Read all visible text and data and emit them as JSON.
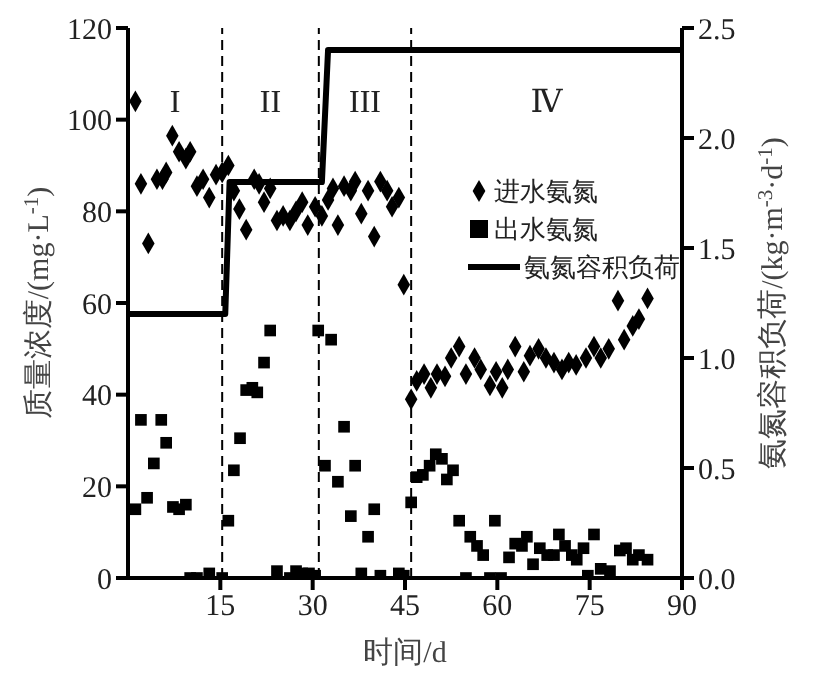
{
  "chart_data": {
    "type": "scatter",
    "xlabel": "时间/d",
    "ylabel": "质量浓度/(mg·L$^{-1}$)",
    "y2label": "氨氮容积负荷/(kg·m$^{-3}$·d$^{-1}$)",
    "xlim": [
      0,
      90
    ],
    "xticks": [
      15,
      30,
      45,
      60,
      75,
      90
    ],
    "ylim": [
      0,
      120
    ],
    "yticks": [
      0,
      20,
      40,
      60,
      80,
      100,
      120
    ],
    "y2lim": [
      0,
      2.5
    ],
    "y2ticks": [
      {
        "value": 0,
        "label": "0.0"
      },
      {
        "value": 0.5,
        "label": "0.5"
      },
      {
        "value": 1,
        "label": "1.0"
      },
      {
        "value": 1.5,
        "label": "1.5"
      },
      {
        "value": 2,
        "label": "2.0"
      },
      {
        "value": 2.5,
        "label": "2.5"
      }
    ],
    "legend": "right",
    "ref_lines": [
      {
        "axis": "x",
        "value": 15.3,
        "line_style": "dashed",
        "color": "#000000"
      },
      {
        "axis": "x",
        "value": 31,
        "line_style": "dashed",
        "color": "#000000"
      },
      {
        "axis": "x",
        "value": 46,
        "line_style": "dashed",
        "color": "#000000"
      }
    ],
    "annotations": [
      "I",
      "II",
      "III",
      "Ⅳ"
    ],
    "series": [
      {
        "name": "进水氨氮",
        "marker": "diamond",
        "color": "#000000",
        "x": [
          1.2,
          2.1,
          3.3,
          4.7,
          5.6,
          6.2,
          7.2,
          8.3,
          9.4,
          10.1,
          11.2,
          12.2,
          13.2,
          14.3,
          15.3,
          16.3,
          17.2,
          18.1,
          19.2,
          20.5,
          21.3,
          22.1,
          23.1,
          24.2,
          25.2,
          26.3,
          27.3,
          28.3,
          29.2,
          30.4,
          31.5,
          32.5,
          33.3,
          34.1,
          35.1,
          36.2,
          36.9,
          37.9,
          39,
          40,
          41,
          42.1,
          42.9,
          44,
          44.8,
          46,
          46.9,
          48.1,
          49.2,
          50.2,
          51.5,
          52.5,
          53.8,
          54.9,
          56.3,
          57.3,
          58.8,
          59.8,
          60.8,
          61.7,
          62.9,
          64.3,
          65.3,
          66.7,
          67.9,
          69.2,
          70.5,
          71.6,
          72.8,
          74.4,
          75.7,
          76.8,
          78.1,
          79.6,
          80.6,
          82,
          83,
          84.4
        ],
        "values": [
          104,
          86,
          73,
          87,
          87,
          88.5,
          96.5,
          93,
          91.5,
          93,
          85.5,
          87,
          83,
          88,
          88.5,
          90,
          84.5,
          80.5,
          76,
          87,
          86,
          82,
          85,
          78,
          79,
          78,
          80,
          82,
          77,
          81,
          79,
          82.5,
          85,
          77,
          85.5,
          84.5,
          86.5,
          79.5,
          84.5,
          74.5,
          86.5,
          84.5,
          81,
          83,
          64,
          39,
          43,
          44.5,
          41.5,
          44.5,
          44,
          48,
          50.5,
          44.5,
          48,
          45.5,
          42,
          45,
          41.5,
          45.5,
          50.5,
          45,
          48.5,
          50,
          48,
          47,
          45.5,
          47,
          46.5,
          48,
          50.5,
          48,
          50,
          60.5,
          52,
          55,
          56.5,
          61
        ]
      },
      {
        "name": "出水氨氮",
        "marker": "square",
        "color": "#000000",
        "x": [
          1.2,
          2.1,
          3.1,
          4.2,
          5.4,
          6.2,
          7.3,
          8.3,
          9.4,
          10.1,
          11.2,
          13.2,
          15.3,
          16.3,
          17.2,
          18.2,
          19.2,
          20.2,
          21,
          22.1,
          23.1,
          24.2,
          26.3,
          27.3,
          28.3,
          29.4,
          30.4,
          30.9,
          32,
          33,
          34.1,
          35.1,
          36.2,
          36.9,
          37.9,
          39,
          40,
          41,
          44,
          44.8,
          46,
          46.9,
          47.9,
          49,
          50,
          51,
          51.8,
          52.8,
          53.8,
          54.9,
          55.6,
          56.7,
          57.7,
          58.8,
          59.6,
          60.6,
          61.9,
          62.9,
          64,
          64.8,
          65.8,
          66.9,
          68.1,
          69.2,
          70,
          71,
          72.1,
          72.9,
          74,
          74.7,
          75.7,
          76.8,
          78.3,
          79.9,
          80.9,
          82,
          83,
          84.4
        ],
        "values": [
          15,
          34.5,
          17.5,
          25,
          34.5,
          29.5,
          15.5,
          15,
          16,
          0,
          0,
          1,
          0,
          12.5,
          23.5,
          30.5,
          41,
          41.5,
          40.5,
          47,
          54,
          1.5,
          0,
          1.5,
          1,
          1,
          0.5,
          54,
          24.5,
          52,
          21,
          33,
          13.5,
          24.5,
          1,
          9,
          15,
          0.5,
          1,
          0.5,
          16.5,
          22,
          22.5,
          24.5,
          27,
          26,
          21.5,
          23.5,
          12.5,
          0,
          9,
          7,
          5,
          0,
          12.5,
          0,
          4.5,
          7.5,
          7,
          9,
          3,
          6.5,
          5,
          5,
          9.5,
          7,
          5,
          4,
          6.5,
          0.5,
          9.5,
          2,
          1.5,
          6,
          6.5,
          4,
          5,
          4
        ]
      },
      {
        "name": "氨氮容积负荷",
        "type": "line",
        "axis": "y2",
        "marker": "none",
        "line_style": "solid",
        "color": "#000000",
        "x": [
          0,
          15.8,
          16.5,
          31.5,
          32.5,
          90
        ],
        "values": [
          1.2,
          1.2,
          1.8,
          1.8,
          2.4,
          2.4
        ]
      }
    ]
  }
}
